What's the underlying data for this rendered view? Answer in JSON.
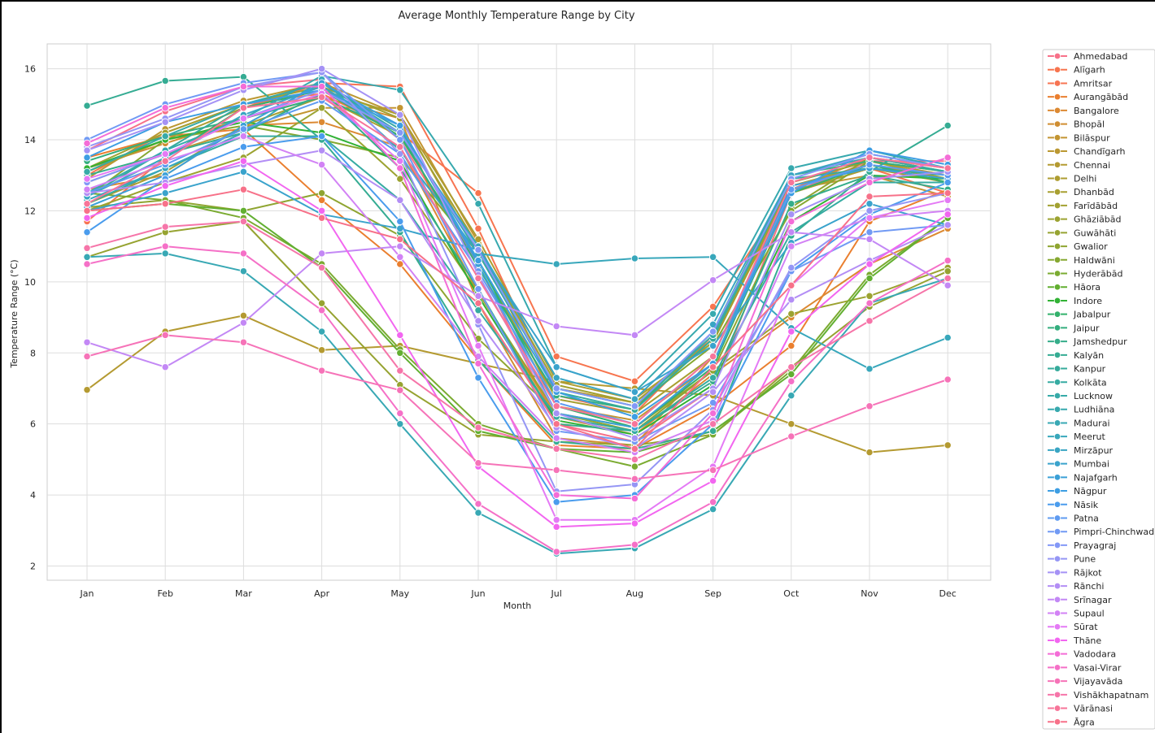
{
  "chart_data": {
    "type": "line",
    "title": "Average Monthly Temperature Range by City",
    "xlabel": "Month",
    "ylabel": "Temperature Range (°C)",
    "ylim": [
      1.6,
      16.7
    ],
    "yticks": [
      2,
      4,
      6,
      8,
      10,
      12,
      14,
      16
    ],
    "grid": true,
    "legend_position": "outside-right",
    "categories": [
      "Jan",
      "Feb",
      "Mar",
      "Apr",
      "May",
      "Jun",
      "Jul",
      "Aug",
      "Sep",
      "Oct",
      "Nov",
      "Dec"
    ],
    "series": [
      {
        "name": "Ahmedabad",
        "color": "#f77189",
        "values": [
          13.7,
          14.8,
          15.5,
          15.7,
          14.0,
          10.5,
          6.0,
          5.5,
          7.0,
          12.5,
          13.4,
          13.4
        ]
      },
      {
        "name": "Alīgarh",
        "color": "#f7754f",
        "values": [
          13.0,
          14.2,
          15.0,
          15.3,
          14.2,
          12.5,
          7.9,
          7.2,
          9.3,
          12.6,
          13.5,
          13.2
        ]
      },
      {
        "name": "Amritsar",
        "color": "#f77452",
        "values": [
          11.7,
          13.5,
          14.9,
          15.6,
          15.5,
          11.5,
          6.8,
          6.3,
          8.5,
          12.5,
          13.2,
          12.5
        ]
      },
      {
        "name": "Aurangābād",
        "color": "#ea7f2f",
        "values": [
          13.5,
          14.1,
          14.3,
          12.3,
          10.5,
          7.8,
          5.4,
          5.3,
          6.5,
          8.2,
          11.7,
          12.6
        ]
      },
      {
        "name": "Bangalore",
        "color": "#dc8932",
        "values": [
          12.6,
          13.0,
          14.4,
          14.5,
          13.8,
          9.7,
          6.2,
          5.7,
          7.4,
          9.0,
          10.5,
          11.5
        ]
      },
      {
        "name": "Bhopāl",
        "color": "#d08e32",
        "values": [
          13.2,
          13.9,
          14.6,
          15.2,
          14.6,
          9.4,
          5.6,
          5.4,
          7.9,
          12.7,
          13.3,
          12.8
        ]
      },
      {
        "name": "Bilāspur",
        "color": "#c39532",
        "values": [
          12.8,
          13.6,
          14.3,
          14.9,
          14.9,
          11.1,
          6.5,
          6.1,
          7.7,
          12.6,
          13.0,
          12.4
        ]
      },
      {
        "name": "Chandīgarh",
        "color": "#bb9832",
        "values": [
          12.9,
          14.3,
          15.1,
          15.6,
          14.7,
          10.8,
          7.0,
          6.6,
          8.4,
          12.8,
          13.4,
          13.0
        ]
      },
      {
        "name": "Chennai",
        "color": "#b49a31",
        "values": [
          6.96,
          8.6,
          9.05,
          8.08,
          8.2,
          7.7,
          7.2,
          7.0,
          6.8,
          6.0,
          5.2,
          5.4
        ]
      },
      {
        "name": "Delhi",
        "color": "#ae9d31",
        "values": [
          13.1,
          14.0,
          14.9,
          15.4,
          14.7,
          11.2,
          7.2,
          6.7,
          8.3,
          12.7,
          13.3,
          12.9
        ]
      },
      {
        "name": "Dhanbād",
        "color": "#a89f31",
        "values": [
          12.2,
          13.1,
          14.4,
          15.2,
          14.1,
          10.6,
          6.7,
          6.3,
          7.9,
          12.5,
          13.2,
          12.8
        ]
      },
      {
        "name": "Farīdābād",
        "color": "#a2a131",
        "values": [
          13.2,
          14.2,
          15.0,
          15.5,
          14.6,
          11.0,
          7.1,
          6.6,
          8.3,
          12.8,
          13.4,
          12.9
        ]
      },
      {
        "name": "Ghāziābād",
        "color": "#9ca331",
        "values": [
          12.0,
          12.8,
          13.5,
          14.9,
          12.9,
          9.7,
          6.3,
          5.9,
          7.5,
          9.1,
          9.6,
          10.4
        ]
      },
      {
        "name": "Guwāhāti",
        "color": "#96a331",
        "values": [
          10.7,
          11.4,
          11.7,
          9.4,
          7.1,
          5.7,
          5.5,
          5.4,
          5.7,
          7.6,
          9.3,
          10.3
        ]
      },
      {
        "name": "Gwalior",
        "color": "#8fa531",
        "values": [
          12.1,
          12.3,
          12.0,
          12.5,
          11.3,
          8.4,
          6.3,
          5.8,
          7.5,
          12.1,
          13.5,
          13.1
        ]
      },
      {
        "name": "Haldwāni",
        "color": "#86a831",
        "values": [
          12.4,
          14.0,
          14.4,
          14.0,
          13.5,
          10.8,
          7.0,
          6.5,
          8.2,
          12.0,
          13.4,
          13.1
        ]
      },
      {
        "name": "Hyderābād",
        "color": "#7bab31",
        "values": [
          12.5,
          12.3,
          11.8,
          10.5,
          8.1,
          6.0,
          5.3,
          4.8,
          5.7,
          7.5,
          10.2,
          11.8
        ]
      },
      {
        "name": "Hāora",
        "color": "#62af31",
        "values": [
          12.0,
          12.2,
          12.0,
          10.4,
          8.0,
          5.8,
          5.3,
          5.2,
          5.8,
          7.4,
          10.1,
          11.8
        ]
      },
      {
        "name": "Indore",
        "color": "#32b235",
        "values": [
          13.2,
          14.0,
          14.5,
          14.2,
          13.4,
          9.6,
          6.1,
          5.7,
          7.1,
          11.7,
          13.0,
          12.9
        ]
      },
      {
        "name": "Jabalpur",
        "color": "#33b16b",
        "values": [
          12.4,
          13.5,
          14.9,
          15.4,
          14.1,
          10.6,
          6.5,
          5.9,
          7.6,
          12.5,
          13.3,
          12.8
        ]
      },
      {
        "name": "Jaipur",
        "color": "#34ae7e",
        "values": [
          13.4,
          14.1,
          14.6,
          15.2,
          14.2,
          10.4,
          6.8,
          6.4,
          8.6,
          13.0,
          13.4,
          13.1
        ]
      },
      {
        "name": "Jamshedpur",
        "color": "#35ad8a",
        "values": [
          13.0,
          13.6,
          14.2,
          15.3,
          13.2,
          9.8,
          6.0,
          5.8,
          7.2,
          12.2,
          13.0,
          12.6
        ]
      },
      {
        "name": "Kalyān",
        "color": "#35ac93",
        "values": [
          14.96,
          15.66,
          15.77,
          14.0,
          11.4,
          7.8,
          5.5,
          5.3,
          5.8,
          11.3,
          13.1,
          14.4
        ]
      },
      {
        "name": "Kanpur",
        "color": "#36ab9b",
        "values": [
          12.4,
          13.7,
          15.0,
          15.6,
          14.2,
          11.0,
          6.9,
          6.4,
          8.4,
          12.9,
          13.2,
          13.0
        ]
      },
      {
        "name": "Kolkāta",
        "color": "#36aba2",
        "values": [
          12.2,
          13.2,
          14.1,
          14.1,
          12.3,
          9.2,
          6.2,
          5.8,
          7.3,
          11.4,
          12.8,
          12.8
        ]
      },
      {
        "name": "Lucknow",
        "color": "#37aaa8",
        "values": [
          13.1,
          14.1,
          15.0,
          15.6,
          14.3,
          10.8,
          7.0,
          6.5,
          8.5,
          13.0,
          13.5,
          13.1
        ]
      },
      {
        "name": "Ludhiāna",
        "color": "#37a9ae",
        "values": [
          12.5,
          13.7,
          14.6,
          15.8,
          15.4,
          12.2,
          7.6,
          6.9,
          9.1,
          13.2,
          13.7,
          13.2
        ]
      },
      {
        "name": "Madurai",
        "color": "#38a8b4",
        "values": [
          10.7,
          10.8,
          10.3,
          8.6,
          6.0,
          3.5,
          2.35,
          2.5,
          3.6,
          6.8,
          9.4,
          10.1
        ]
      },
      {
        "name": "Meerut",
        "color": "#38a7bb",
        "values": [
          12.3,
          13.2,
          14.2,
          15.7,
          13.7,
          10.8,
          10.5,
          10.66,
          10.7,
          8.7,
          7.55,
          8.43
        ]
      },
      {
        "name": "Mirzāpur",
        "color": "#39a5c3",
        "values": [
          12.4,
          13.5,
          14.7,
          15.5,
          14.2,
          11.0,
          7.3,
          6.7,
          8.8,
          13.0,
          13.6,
          13.2
        ]
      },
      {
        "name": "Mumbai",
        "color": "#3aa3cc",
        "values": [
          12.0,
          12.5,
          13.1,
          11.9,
          11.5,
          10.9,
          7.6,
          6.9,
          8.2,
          11.1,
          12.2,
          11.6
        ]
      },
      {
        "name": "Najafgarh",
        "color": "#3ba0d7",
        "values": [
          12.1,
          13.0,
          14.4,
          15.6,
          14.4,
          10.5,
          6.3,
          5.9,
          7.7,
          12.7,
          13.2,
          12.9
        ]
      },
      {
        "name": "Nāgpur",
        "color": "#3d9ee3",
        "values": [
          13.5,
          14.5,
          15.0,
          15.4,
          14.4,
          10.6,
          6.9,
          6.2,
          7.7,
          12.5,
          13.7,
          13.3
        ]
      },
      {
        "name": "Nāsik",
        "color": "#4a9ced",
        "values": [
          11.4,
          12.9,
          13.8,
          14.1,
          11.7,
          7.3,
          3.8,
          4.0,
          6.0,
          10.3,
          11.9,
          12.8
        ]
      },
      {
        "name": "Patna",
        "color": "#5f9bf1",
        "values": [
          12.5,
          13.3,
          14.3,
          15.1,
          13.6,
          10.3,
          6.6,
          6.0,
          7.9,
          12.6,
          13.3,
          13.0
        ]
      },
      {
        "name": "Pimpri-Chinchwad",
        "color": "#719af4",
        "values": [
          14.0,
          15.0,
          15.6,
          15.9,
          14.0,
          9.8,
          5.8,
          5.5,
          6.6,
          10.3,
          11.4,
          11.6
        ]
      },
      {
        "name": "Prayagraj",
        "color": "#8398f7",
        "values": [
          12.8,
          13.6,
          14.6,
          15.4,
          14.2,
          10.9,
          7.0,
          6.5,
          8.6,
          12.9,
          13.6,
          13.2
        ]
      },
      {
        "name": "Pune",
        "color": "#9596f5",
        "values": [
          13.8,
          14.6,
          15.5,
          15.9,
          13.6,
          8.8,
          4.1,
          4.3,
          6.4,
          10.4,
          12.0,
          12.5
        ]
      },
      {
        "name": "Rājkot",
        "color": "#a592f5",
        "values": [
          13.7,
          14.5,
          15.4,
          16.0,
          14.7,
          10.2,
          6.3,
          5.6,
          7.0,
          11.9,
          12.9,
          13.1
        ]
      },
      {
        "name": "Rānchi",
        "color": "#b38ef5",
        "values": [
          12.5,
          12.8,
          13.3,
          13.7,
          12.3,
          8.9,
          5.9,
          5.3,
          6.9,
          9.5,
          10.6,
          11.6
        ]
      },
      {
        "name": "Srīnagar",
        "color": "#c388f5",
        "values": [
          8.3,
          7.6,
          8.85,
          10.8,
          11.0,
          9.6,
          8.75,
          8.5,
          10.05,
          11.4,
          11.2,
          9.9
        ]
      },
      {
        "name": "Supaul",
        "color": "#d282f5",
        "values": [
          12.6,
          13.4,
          14.1,
          13.3,
          10.7,
          7.9,
          5.6,
          5.2,
          6.1,
          11.0,
          11.8,
          12.0
        ]
      },
      {
        "name": "Sūrat",
        "color": "#e47af5",
        "values": [
          12.9,
          13.6,
          14.6,
          15.3,
          13.4,
          8.2,
          3.3,
          3.3,
          4.8,
          9.9,
          11.8,
          12.3
        ]
      },
      {
        "name": "Thāne",
        "color": "#f266f0",
        "values": [
          11.8,
          12.7,
          13.4,
          12.0,
          8.5,
          4.8,
          3.1,
          3.2,
          4.4,
          8.6,
          10.5,
          11.9
        ]
      },
      {
        "name": "Vadodara",
        "color": "#f46dd7",
        "values": [
          13.9,
          14.9,
          15.5,
          15.5,
          13.2,
          7.7,
          4.0,
          3.9,
          6.3,
          11.7,
          12.8,
          13.5
        ]
      },
      {
        "name": "Vasai-Virar",
        "color": "#f570c7",
        "values": [
          10.5,
          11.0,
          10.8,
          9.2,
          6.3,
          3.75,
          2.4,
          2.6,
          3.8,
          7.2,
          9.4,
          10.6
        ]
      },
      {
        "name": "Vijayavāda",
        "color": "#f673b8",
        "values": [
          7.9,
          8.5,
          8.3,
          7.5,
          6.95,
          4.9,
          4.7,
          4.45,
          4.7,
          5.65,
          6.5,
          7.25
        ]
      },
      {
        "name": "Vishākhapatnam",
        "color": "#f675a9",
        "values": [
          10.95,
          11.55,
          11.7,
          10.4,
          7.5,
          5.9,
          5.3,
          5.0,
          6.0,
          7.6,
          8.9,
          10.1
        ]
      },
      {
        "name": "Vārānasi",
        "color": "#f77599",
        "values": [
          12.2,
          13.4,
          14.9,
          15.2,
          13.8,
          10.1,
          6.5,
          6.0,
          7.9,
          12.8,
          13.5,
          13.2
        ]
      },
      {
        "name": "Āgra",
        "color": "#f77189",
        "values": [
          12.0,
          12.2,
          12.6,
          11.8,
          11.2,
          9.4,
          6.0,
          5.3,
          7.6,
          9.9,
          12.4,
          12.5
        ]
      }
    ]
  }
}
